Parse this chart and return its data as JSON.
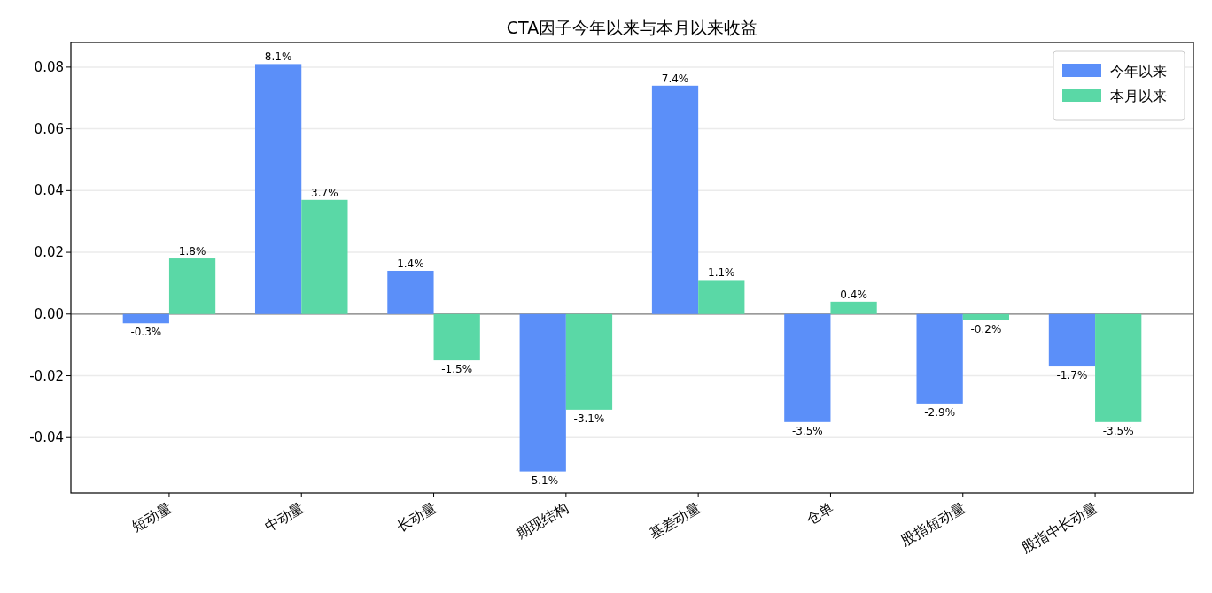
{
  "chart_data": {
    "type": "bar",
    "title": "CTA因子今年以来与本月以来收益",
    "categories": [
      "短动量",
      "中动量",
      "长动量",
      "期现结构",
      "基差动量",
      "仓单",
      "股指短动量",
      "股指中长动量"
    ],
    "series": [
      {
        "name": "今年以来",
        "color": "#5b8ff9",
        "values": [
          -0.003,
          0.081,
          0.014,
          -0.051,
          0.074,
          -0.035,
          -0.029,
          -0.017
        ],
        "value_labels": [
          "-0.3%",
          "8.1%",
          "1.4%",
          "-5.1%",
          "7.4%",
          "-3.5%",
          "-2.9%",
          "-1.7%"
        ]
      },
      {
        "name": "本月以来",
        "color": "#5ad8a6",
        "values": [
          0.018,
          0.037,
          -0.015,
          -0.031,
          0.011,
          0.004,
          -0.002,
          -0.035
        ],
        "value_labels": [
          "1.8%",
          "3.7%",
          "-1.5%",
          "-3.1%",
          "1.1%",
          "0.4%",
          "-0.2%",
          "-3.5%"
        ]
      }
    ],
    "ylim": [
      -0.058,
      0.088
    ],
    "yticks": [
      {
        "value": -0.04,
        "label": "-0.04"
      },
      {
        "value": -0.02,
        "label": "-0.02"
      },
      {
        "value": 0,
        "label": "0.00"
      },
      {
        "value": 0.02,
        "label": "0.02"
      },
      {
        "value": 0.04,
        "label": "0.04"
      },
      {
        "value": 0.06,
        "label": "0.06"
      },
      {
        "value": 0.08,
        "label": "0.08"
      }
    ],
    "ref_lines": [
      {
        "axis": "y",
        "value": 0,
        "color": "#808080"
      }
    ],
    "grid": "y",
    "legend": "top right"
  }
}
